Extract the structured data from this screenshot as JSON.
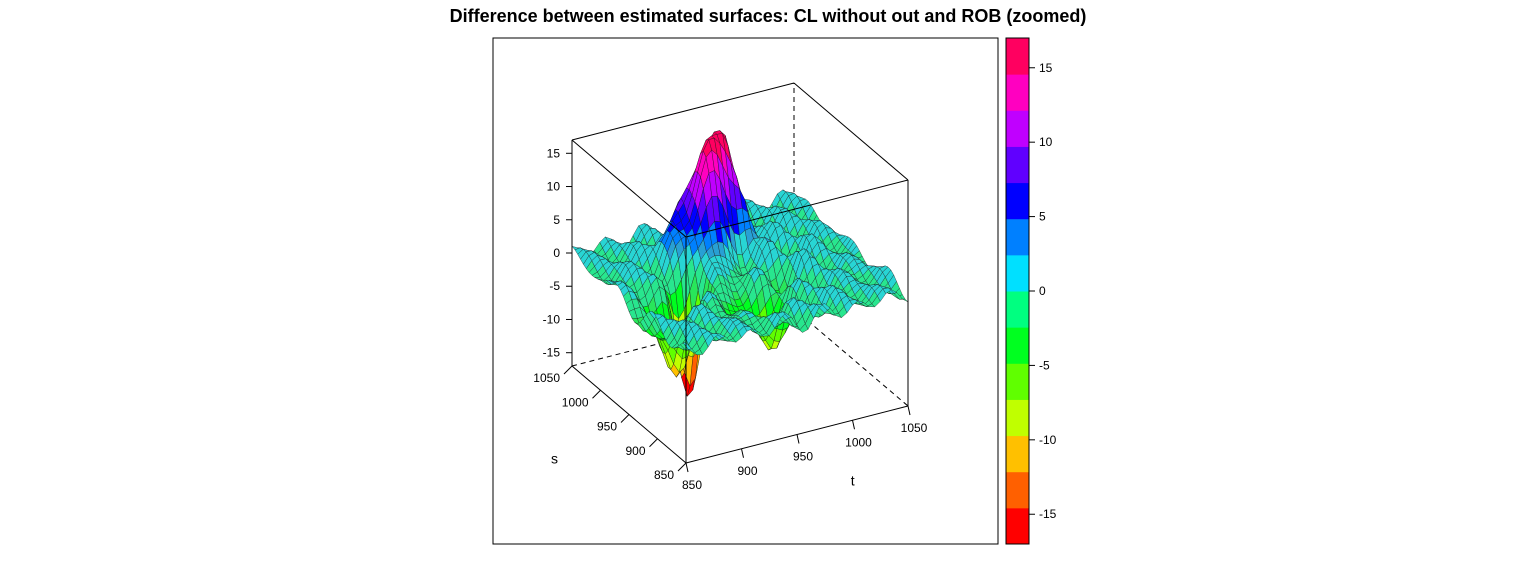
{
  "chart_data": {
    "type": "surface3d",
    "title": "Difference between estimated surfaces: CL without out and ROB (zoomed)",
    "x_axis": {
      "label": "t",
      "ticks": [
        "850",
        "900",
        "950",
        "1000",
        "1050"
      ],
      "range": [
        850,
        1050
      ]
    },
    "y_axis": {
      "label": "s",
      "ticks": [
        "850",
        "900",
        "950",
        "1000",
        "1050"
      ],
      "range": [
        850,
        1050
      ]
    },
    "z_axis": {
      "label": "",
      "ticks": [
        "-15",
        "-10",
        "-5",
        "0",
        "5",
        "10",
        "15"
      ],
      "range": [
        -17,
        17
      ]
    },
    "colorbar": {
      "ticks": [
        "-15",
        "-10",
        "-5",
        "0",
        "5",
        "10",
        "15"
      ],
      "range": [
        -17,
        17
      ],
      "colors": [
        "#ff0000",
        "#ff6000",
        "#ffc000",
        "#c0ff00",
        "#60ff00",
        "#00ff20",
        "#00ff80",
        "#00e0ff",
        "#0080ff",
        "#0000ff",
        "#6000ff",
        "#c000ff",
        "#ff00c0",
        "#ff0060"
      ]
    },
    "surface_features": [
      {
        "t": 950,
        "s": 1000,
        "z": 16,
        "note": "central positive peak"
      },
      {
        "t": 900,
        "s": 950,
        "z": -15,
        "note": "negative trough"
      },
      {
        "t": 1050,
        "s": 1050,
        "z": 0
      },
      {
        "t": 850,
        "s": 850,
        "z": -2
      }
    ]
  }
}
